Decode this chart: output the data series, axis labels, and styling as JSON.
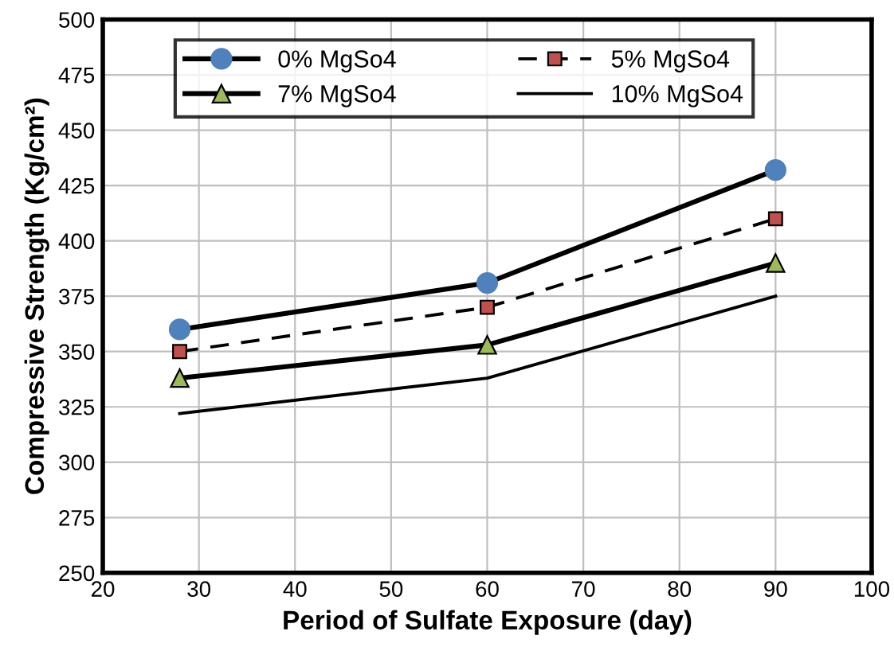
{
  "chart_data": {
    "type": "line",
    "xlabel": "Period of Sulfate Exposure (day)",
    "ylabel": "Compressive Strength (Kg/cm²)",
    "x": [
      28,
      60,
      90
    ],
    "series": [
      {
        "name": "0% MgSo4",
        "color": "#000000",
        "marker": "circle",
        "colors": [
          "#4f81bd",
          "#4f81bd",
          "#4f81bd"
        ],
        "line_style": "solid",
        "values": [
          360,
          381,
          432
        ]
      },
      {
        "name": "5% MgSo4",
        "color": "#000000",
        "marker": "square",
        "colors": [
          "#c0504d",
          "#c0504d",
          "#c0504d"
        ],
        "line_style": "dashed",
        "values": [
          350,
          370,
          410
        ]
      },
      {
        "name": "7% MgSo4",
        "color": "#000000",
        "marker": "triangle",
        "colors": [
          "#9bbb59",
          "#9bbb59",
          "#9bbb59"
        ],
        "line_style": "solid",
        "values": [
          338,
          353,
          390
        ]
      },
      {
        "name": "10% MgSo4",
        "color": "#000000",
        "marker": "none",
        "line_style": "solid",
        "values": [
          322,
          338,
          375
        ]
      }
    ],
    "xlim": [
      20,
      100
    ],
    "xticks": [
      20,
      30,
      40,
      50,
      60,
      70,
      80,
      90,
      100
    ],
    "ylim": [
      250,
      500
    ],
    "yticks": [
      250,
      275,
      300,
      325,
      350,
      375,
      400,
      425,
      450,
      475,
      500
    ],
    "grid": true,
    "legend": "top"
  }
}
